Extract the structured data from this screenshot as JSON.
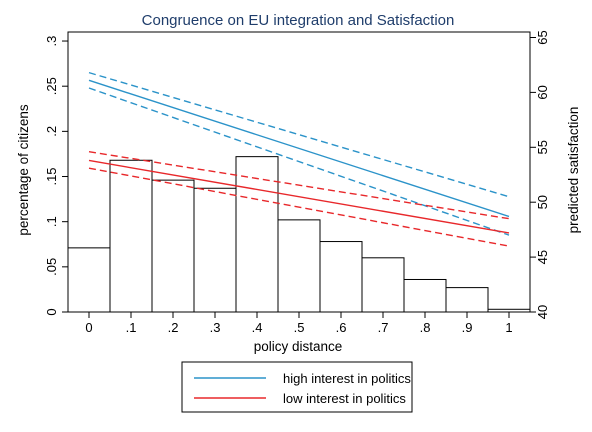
{
  "chart_data": {
    "type": "bar",
    "title": "Congruence on EU integration and Satisfaction",
    "xlabel": "policy distance",
    "ylabel_left": "percentage of citizens",
    "ylabel_right": "predicted satisfaction",
    "xlim": [
      -0.05,
      1.05
    ],
    "ylim_left": [
      0,
      0.31
    ],
    "ylim_right": [
      40,
      65.5
    ],
    "x_ticks": [
      {
        "value": 0,
        "label": "0"
      },
      {
        "value": 0.1,
        "label": ".1"
      },
      {
        "value": 0.2,
        "label": ".2"
      },
      {
        "value": 0.3,
        "label": ".3"
      },
      {
        "value": 0.4,
        "label": ".4"
      },
      {
        "value": 0.5,
        "label": ".5"
      },
      {
        "value": 0.6,
        "label": ".6"
      },
      {
        "value": 0.7,
        "label": ".7"
      },
      {
        "value": 0.8,
        "label": ".8"
      },
      {
        "value": 0.9,
        "label": ".9"
      },
      {
        "value": 1,
        "label": "1"
      }
    ],
    "y_left_ticks": [
      {
        "value": 0,
        "label": "0"
      },
      {
        "value": 0.05,
        "label": ".05"
      },
      {
        "value": 0.1,
        "label": ".1"
      },
      {
        "value": 0.15,
        "label": ".15"
      },
      {
        "value": 0.2,
        "label": ".2"
      },
      {
        "value": 0.25,
        "label": ".25"
      },
      {
        "value": 0.3,
        "label": ".3"
      }
    ],
    "y_right_ticks": [
      {
        "value": 40,
        "label": "40"
      },
      {
        "value": 45,
        "label": "45"
      },
      {
        "value": 50,
        "label": "50"
      },
      {
        "value": 55,
        "label": "55"
      },
      {
        "value": 60,
        "label": "60"
      },
      {
        "value": 65,
        "label": "65"
      }
    ],
    "histogram": {
      "axis": "left",
      "bins": [
        {
          "x0": -0.05,
          "x1": 0.05,
          "value": 0.071
        },
        {
          "x0": 0.05,
          "x1": 0.15,
          "value": 0.168
        },
        {
          "x0": 0.15,
          "x1": 0.25,
          "value": 0.146
        },
        {
          "x0": 0.25,
          "x1": 0.35,
          "value": 0.137
        },
        {
          "x0": 0.35,
          "x1": 0.45,
          "value": 0.172
        },
        {
          "x0": 0.45,
          "x1": 0.55,
          "value": 0.102
        },
        {
          "x0": 0.55,
          "x1": 0.65,
          "value": 0.078
        },
        {
          "x0": 0.65,
          "x1": 0.75,
          "value": 0.06
        },
        {
          "x0": 0.75,
          "x1": 0.85,
          "value": 0.036
        },
        {
          "x0": 0.85,
          "x1": 0.95,
          "value": 0.027
        },
        {
          "x0": 0.95,
          "x1": 1.05,
          "value": 0.003
        }
      ]
    },
    "series": [
      {
        "name": "high interest in politics",
        "axis": "right",
        "color": "#2b93c9",
        "x": [
          0,
          1
        ],
        "mid": [
          61.1,
          48.7
        ],
        "lower": [
          60.4,
          47.0
        ],
        "upper": [
          61.8,
          50.5
        ]
      },
      {
        "name": "low interest in politics",
        "axis": "right",
        "color": "#e8282b",
        "x": [
          0,
          1
        ],
        "mid": [
          53.8,
          47.2
        ],
        "lower": [
          53.1,
          46.0
        ],
        "upper": [
          54.6,
          48.5
        ]
      }
    ],
    "legend_position": "bottom"
  }
}
